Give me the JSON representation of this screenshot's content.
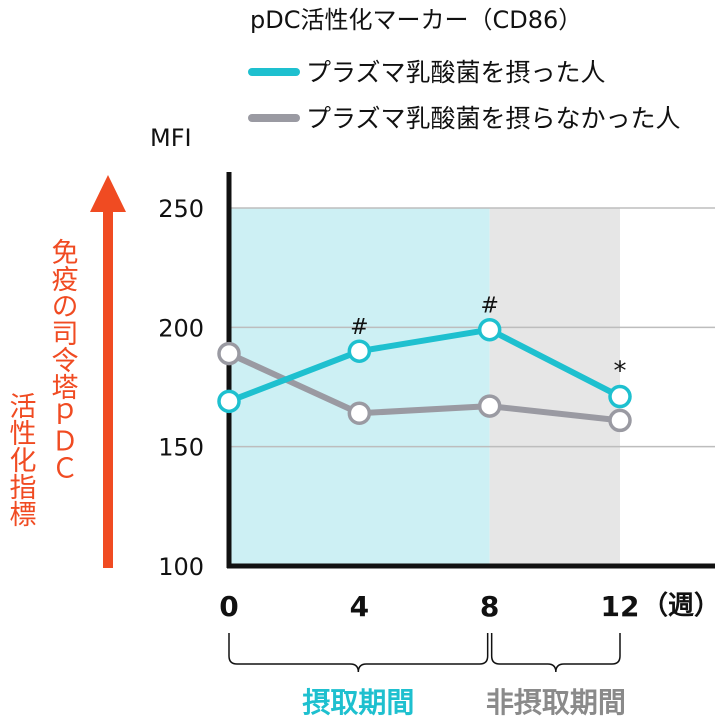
{
  "chart_data": {
    "type": "line",
    "title": "pDC活性化マーカー（CD86）",
    "ylabel": "MFI",
    "y_indicator_main": "免疫の司令塔ｐＤＣ",
    "y_indicator_sub": "活性化指標",
    "x_unit": "（週）",
    "x": [
      0,
      4,
      8,
      12
    ],
    "x_tick_labels": [
      "0",
      "4",
      "8",
      "12"
    ],
    "y_ticks": [
      250,
      200,
      150,
      100
    ],
    "ylim": [
      100,
      250
    ],
    "grid": true,
    "legend_position": "top",
    "series": [
      {
        "name": "プラズマ乳酸菌を摂った人",
        "color": "#1ec0cf",
        "values": [
          169,
          190,
          199,
          171
        ],
        "marks": [
          "",
          "#",
          "#",
          "*"
        ]
      },
      {
        "name": "プラズマ乳酸菌を摂らなかった人",
        "color": "#9a9aa2",
        "values": [
          189,
          164,
          167,
          161
        ],
        "marks": [
          "",
          "",
          "",
          ""
        ]
      }
    ],
    "periods": [
      {
        "label": "摂取期間",
        "from": 0,
        "to": 8,
        "fill": "#cdf0f4",
        "label_color": "#1ec0cf"
      },
      {
        "label": "非摂取期間",
        "from": 8,
        "to": 12,
        "fill": "#e6e6e6",
        "label_color": "#8a8a8a"
      }
    ],
    "accent_color": "#f04b22"
  }
}
